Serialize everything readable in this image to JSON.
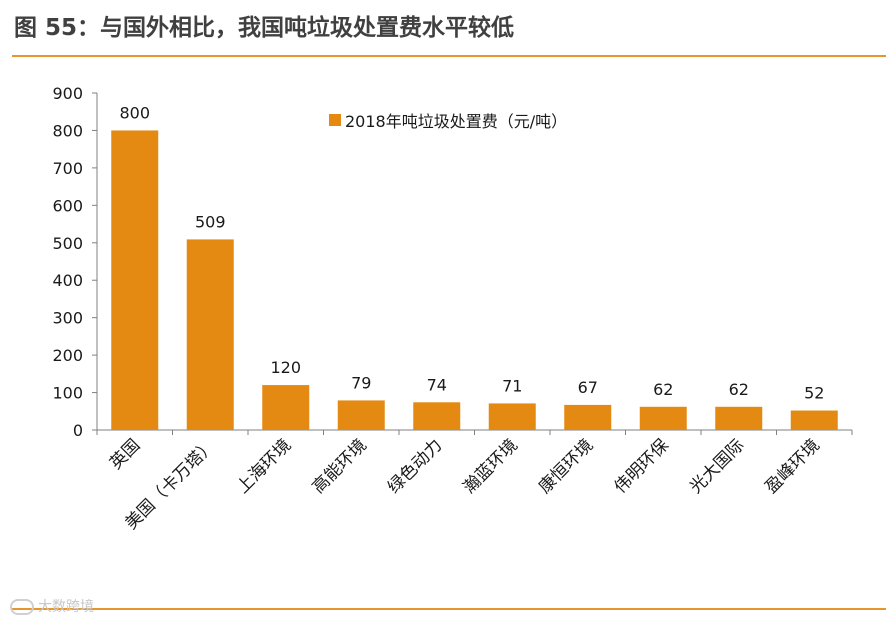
{
  "header": {
    "title": "图 55：与国外相比，我国吨垃圾处置费水平较低"
  },
  "colors": {
    "bar": "#E48A12",
    "accent": "#E7962E",
    "axis": "#808080",
    "text": "#1a1a1a"
  },
  "watermark": {
    "text": "大数跨境"
  },
  "chart_data": {
    "type": "bar",
    "title": "",
    "categories": [
      "英国",
      "美国（卡万塔）",
      "上海环境",
      "高能环境",
      "绿色动力",
      "瀚蓝环境",
      "康恒环境",
      "伟明环保",
      "光大国际",
      "盈峰环境"
    ],
    "series": [
      {
        "name": "2018年吨垃圾处置费（元/吨）",
        "values": [
          800,
          509,
          120,
          79,
          74,
          71,
          67,
          62,
          62,
          52
        ]
      }
    ],
    "data_labels": [
      "800",
      "509",
      "120",
      "79",
      "74",
      "71",
      "67",
      "62",
      "62",
      "52"
    ],
    "yticks": [
      "0",
      "100",
      "200",
      "300",
      "400",
      "500",
      "600",
      "700",
      "800",
      "900"
    ],
    "ylim": [
      0,
      900
    ],
    "xlabel": "",
    "ylabel": "",
    "legend_position": "top-center",
    "grid": false
  }
}
